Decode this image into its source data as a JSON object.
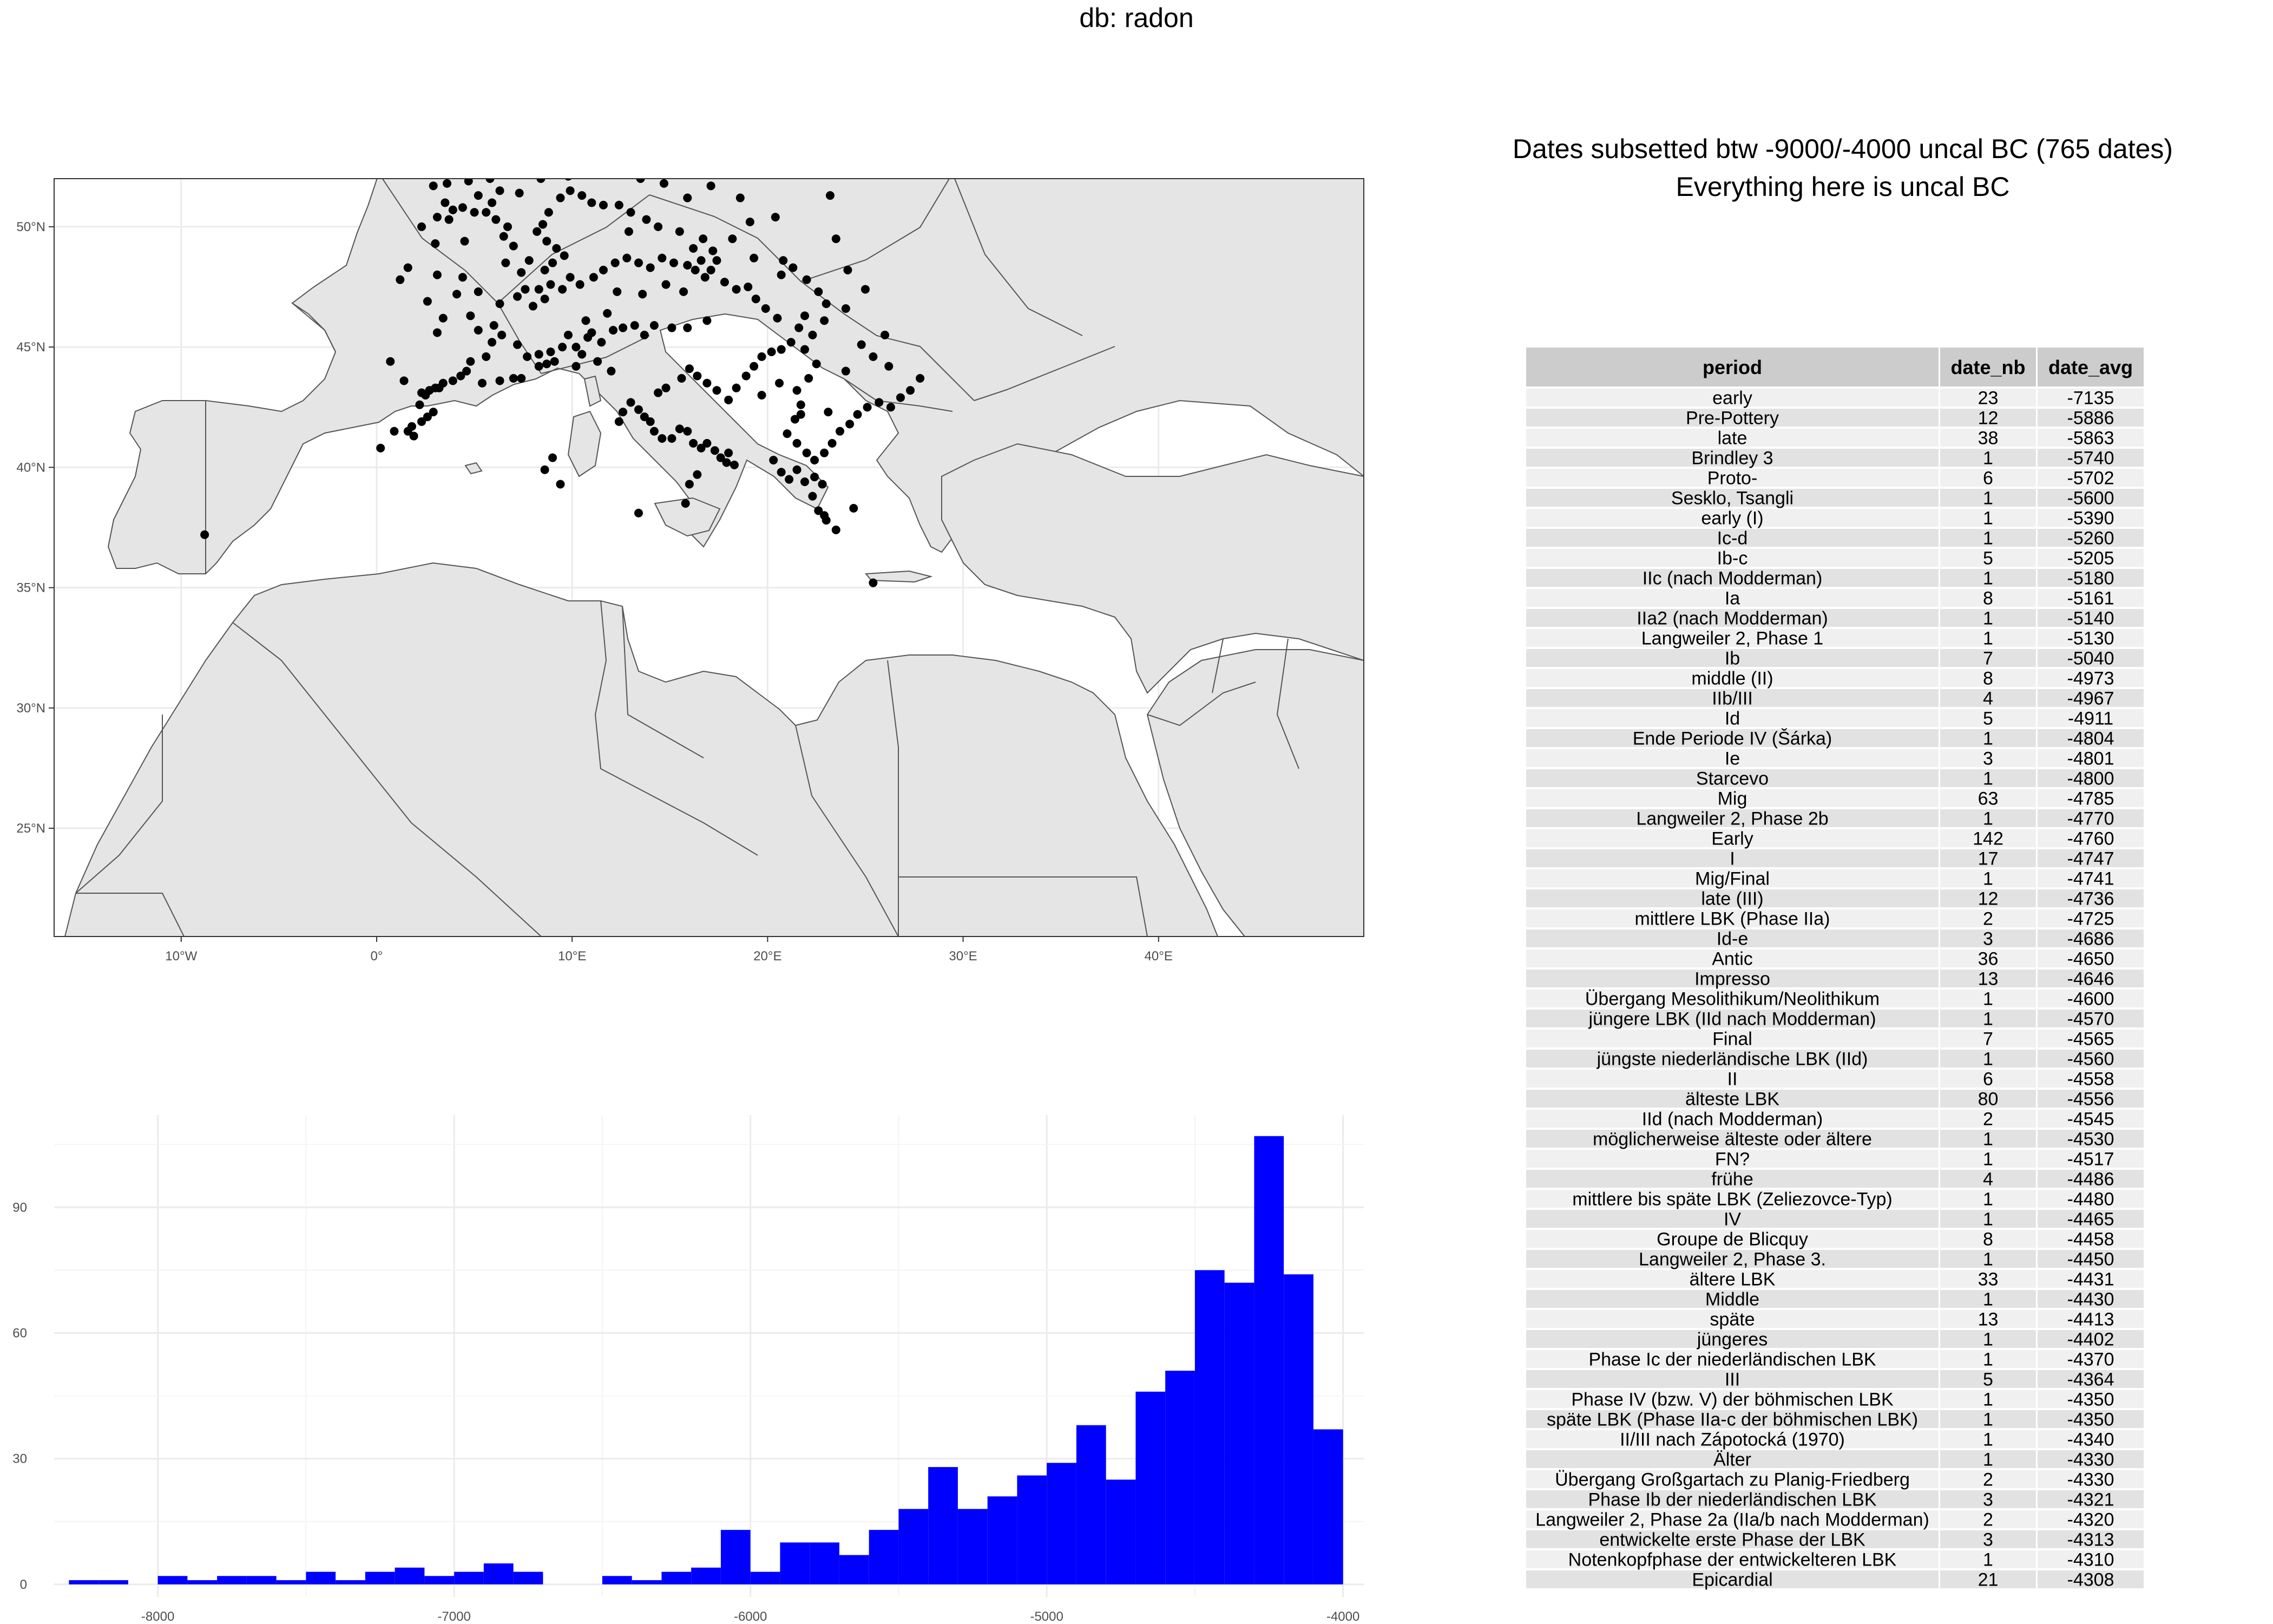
{
  "header": {
    "title": "db: radon"
  },
  "subtitle": {
    "line1": "Dates subsetted btw -9000/-4000 uncal BC (765 dates)",
    "line2": "Everything here is uncal BC"
  },
  "colors": {
    "bars": "#0000ff",
    "land": "#e5e5e5",
    "points": "#000000",
    "table_header": "#cccccc",
    "row_a": "#f0f0f0",
    "row_b": "#e2e2e2"
  },
  "map": {
    "type": "scatter",
    "xlim": [
      -16.5,
      50.5
    ],
    "ylim": [
      20.5,
      52
    ],
    "x_ticks": [
      -10,
      0,
      10,
      20,
      30,
      40
    ],
    "x_tick_labels": [
      "10°W",
      "0°",
      "10°E",
      "20°E",
      "30°E",
      "40°E"
    ],
    "y_ticks": [
      25,
      30,
      35,
      40,
      45,
      50
    ],
    "y_tick_labels": [
      "25°N",
      "30°N",
      "35°N",
      "40°N",
      "45°N",
      "50°N"
    ],
    "points": [
      [
        -8.8,
        37.2
      ],
      [
        0.2,
        40.8
      ],
      [
        0.9,
        41.5
      ],
      [
        1.9,
        41.3
      ],
      [
        1.6,
        41.5
      ],
      [
        1.8,
        41.7
      ],
      [
        2.3,
        41.9
      ],
      [
        2.6,
        42.1
      ],
      [
        2.9,
        42.3
      ],
      [
        2.2,
        42.6
      ],
      [
        2.3,
        43.1
      ],
      [
        2.7,
        43.2
      ],
      [
        3.0,
        43.3
      ],
      [
        3.2,
        43.3
      ],
      [
        3.4,
        43.5
      ],
      [
        3.9,
        43.6
      ],
      [
        4.3,
        43.8
      ],
      [
        4.6,
        44.0
      ],
      [
        5.4,
        43.5
      ],
      [
        6.3,
        43.6
      ],
      [
        7.0,
        43.7
      ],
      [
        7.4,
        43.7
      ],
      [
        4.8,
        44.4
      ],
      [
        5.6,
        44.6
      ],
      [
        5.9,
        45.2
      ],
      [
        6.4,
        45.5
      ],
      [
        7.2,
        45.1
      ],
      [
        7.7,
        44.6
      ],
      [
        8.3,
        44.2
      ],
      [
        8.7,
        44.3
      ],
      [
        9.1,
        44.4
      ],
      [
        8.3,
        44.7
      ],
      [
        8.9,
        44.8
      ],
      [
        9.5,
        45.0
      ],
      [
        10.2,
        45.0
      ],
      [
        10.8,
        45.4
      ],
      [
        11.0,
        45.6
      ],
      [
        11.5,
        45.2
      ],
      [
        12.1,
        45.7
      ],
      [
        12.6,
        45.8
      ],
      [
        13.2,
        45.9
      ],
      [
        13.7,
        45.5
      ],
      [
        14.2,
        45.9
      ],
      [
        15.1,
        45.8
      ],
      [
        15.9,
        45.8
      ],
      [
        16.9,
        46.1
      ],
      [
        8.0,
        46.7
      ],
      [
        8.6,
        47.0
      ],
      [
        7.2,
        47.1
      ],
      [
        7.6,
        47.4
      ],
      [
        8.3,
        47.4
      ],
      [
        8.9,
        47.6
      ],
      [
        9.5,
        47.4
      ],
      [
        9.9,
        47.9
      ],
      [
        10.4,
        47.6
      ],
      [
        11.1,
        47.9
      ],
      [
        11.6,
        48.2
      ],
      [
        12.2,
        48.5
      ],
      [
        12.8,
        48.7
      ],
      [
        13.4,
        48.5
      ],
      [
        14.0,
        48.3
      ],
      [
        14.6,
        48.7
      ],
      [
        15.2,
        48.5
      ],
      [
        15.9,
        48.4
      ],
      [
        16.3,
        48.2
      ],
      [
        16.6,
        48.6
      ],
      [
        17.1,
        48.2
      ],
      [
        17.4,
        48.6
      ],
      [
        17.2,
        49.0
      ],
      [
        16.7,
        49.5
      ],
      [
        16.2,
        49.1
      ],
      [
        15.5,
        49.8
      ],
      [
        14.4,
        50.0
      ],
      [
        13.8,
        50.3
      ],
      [
        13.0,
        50.6
      ],
      [
        12.4,
        50.9
      ],
      [
        11.6,
        50.9
      ],
      [
        11.0,
        51.0
      ],
      [
        10.5,
        51.3
      ],
      [
        9.9,
        51.5
      ],
      [
        9.4,
        51.2
      ],
      [
        8.8,
        50.6
      ],
      [
        8.5,
        50.1
      ],
      [
        8.2,
        49.8
      ],
      [
        8.7,
        49.4
      ],
      [
        9.2,
        49.1
      ],
      [
        9.6,
        48.8
      ],
      [
        9.0,
        48.5
      ],
      [
        8.6,
        48.2
      ],
      [
        7.8,
        48.6
      ],
      [
        7.4,
        48.1
      ],
      [
        7.0,
        49.2
      ],
      [
        6.5,
        49.6
      ],
      [
        6.1,
        50.3
      ],
      [
        5.6,
        50.6
      ],
      [
        5.0,
        50.6
      ],
      [
        4.4,
        50.8
      ],
      [
        3.9,
        50.7
      ],
      [
        3.5,
        51.0
      ],
      [
        5.2,
        51.3
      ],
      [
        5.9,
        51.0
      ],
      [
        6.3,
        51.5
      ],
      [
        7.3,
        51.4
      ],
      [
        4.7,
        51.9
      ],
      [
        3.6,
        51.8
      ],
      [
        3.1,
        50.4
      ],
      [
        2.3,
        50.0
      ],
      [
        3.0,
        49.3
      ],
      [
        1.6,
        48.3
      ],
      [
        3.1,
        48.0
      ],
      [
        4.4,
        47.9
      ],
      [
        5.2,
        47.3
      ],
      [
        6.3,
        46.8
      ],
      [
        1.2,
        47.8
      ],
      [
        2.6,
        46.9
      ],
      [
        3.4,
        46.2
      ],
      [
        4.8,
        46.3
      ],
      [
        3.1,
        45.6
      ],
      [
        5.2,
        45.7
      ],
      [
        6.0,
        45.9
      ],
      [
        12.4,
        41.9
      ],
      [
        12.6,
        42.3
      ],
      [
        13.0,
        42.7
      ],
      [
        13.4,
        42.4
      ],
      [
        13.7,
        42.1
      ],
      [
        14.0,
        41.9
      ],
      [
        14.2,
        41.5
      ],
      [
        14.6,
        41.2
      ],
      [
        15.1,
        41.2
      ],
      [
        15.5,
        41.6
      ],
      [
        15.9,
        41.5
      ],
      [
        16.2,
        41.0
      ],
      [
        16.6,
        40.8
      ],
      [
        16.9,
        41.0
      ],
      [
        17.3,
        40.7
      ],
      [
        17.6,
        40.4
      ],
      [
        17.9,
        40.2
      ],
      [
        18.3,
        40.1
      ],
      [
        18.0,
        40.6
      ],
      [
        16.4,
        39.7
      ],
      [
        16.0,
        39.3
      ],
      [
        15.8,
        38.5
      ],
      [
        14.4,
        43.1
      ],
      [
        14.8,
        43.3
      ],
      [
        15.6,
        43.7
      ],
      [
        16.0,
        44.1
      ],
      [
        16.4,
        43.8
      ],
      [
        16.9,
        43.5
      ],
      [
        17.4,
        43.2
      ],
      [
        18.0,
        42.8
      ],
      [
        18.4,
        43.3
      ],
      [
        18.9,
        43.8
      ],
      [
        19.3,
        44.2
      ],
      [
        19.7,
        44.6
      ],
      [
        20.2,
        44.8
      ],
      [
        20.7,
        44.9
      ],
      [
        21.2,
        45.2
      ],
      [
        21.6,
        45.8
      ],
      [
        21.9,
        46.3
      ],
      [
        20.5,
        46.2
      ],
      [
        19.9,
        46.6
      ],
      [
        19.4,
        47.0
      ],
      [
        19.0,
        47.5
      ],
      [
        18.4,
        47.4
      ],
      [
        17.8,
        47.7
      ],
      [
        20.7,
        48.0
      ],
      [
        21.3,
        48.3
      ],
      [
        20.8,
        48.6
      ],
      [
        22.0,
        47.8
      ],
      [
        22.6,
        47.3
      ],
      [
        23.0,
        46.8
      ],
      [
        22.9,
        46.1
      ],
      [
        22.3,
        45.5
      ],
      [
        21.9,
        44.9
      ],
      [
        22.5,
        44.3
      ],
      [
        22.1,
        43.7
      ],
      [
        21.5,
        43.2
      ],
      [
        21.7,
        42.6
      ],
      [
        21.4,
        42.0
      ],
      [
        21.0,
        41.4
      ],
      [
        21.5,
        41.0
      ],
      [
        22.0,
        40.6
      ],
      [
        22.4,
        40.3
      ],
      [
        22.9,
        40.6
      ],
      [
        23.3,
        41.0
      ],
      [
        23.7,
        41.5
      ],
      [
        24.2,
        41.8
      ],
      [
        24.6,
        42.2
      ],
      [
        25.1,
        42.5
      ],
      [
        25.7,
        42.7
      ],
      [
        26.3,
        42.5
      ],
      [
        26.8,
        42.9
      ],
      [
        27.3,
        43.2
      ],
      [
        27.8,
        43.7
      ],
      [
        26.2,
        44.2
      ],
      [
        25.4,
        44.6
      ],
      [
        24.8,
        45.1
      ],
      [
        20.3,
        40.3
      ],
      [
        20.7,
        39.8
      ],
      [
        21.1,
        39.5
      ],
      [
        21.5,
        39.9
      ],
      [
        21.9,
        39.4
      ],
      [
        22.4,
        39.6
      ],
      [
        22.8,
        39.3
      ],
      [
        22.3,
        38.8
      ],
      [
        22.6,
        38.2
      ],
      [
        23.0,
        37.8
      ],
      [
        23.5,
        37.4
      ],
      [
        24.4,
        38.3
      ],
      [
        22.9,
        38.0
      ],
      [
        25.4,
        35.2
      ],
      [
        8.6,
        39.9
      ],
      [
        9.4,
        39.3
      ],
      [
        9.0,
        40.4
      ],
      [
        13.4,
        38.1
      ],
      [
        2.5,
        43.0
      ],
      [
        1.4,
        43.6
      ],
      [
        0.7,
        44.4
      ],
      [
        3.7,
        50.3
      ],
      [
        6.7,
        50.0
      ],
      [
        4.5,
        49.4
      ],
      [
        12.9,
        49.8
      ],
      [
        18.2,
        49.5
      ],
      [
        19.1,
        50.2
      ],
      [
        20.4,
        50.4
      ],
      [
        23.2,
        51.3
      ],
      [
        24.1,
        48.2
      ],
      [
        23.5,
        49.5
      ],
      [
        25.0,
        47.4
      ],
      [
        24.0,
        46.6
      ],
      [
        26.0,
        45.5
      ],
      [
        20.6,
        43.5
      ],
      [
        19.7,
        43.0
      ],
      [
        24.0,
        44.0
      ],
      [
        10.2,
        44.2
      ],
      [
        10.5,
        44.7
      ],
      [
        11.3,
        44.4
      ],
      [
        12.0,
        44.0
      ],
      [
        9.8,
        45.5
      ],
      [
        10.7,
        46.1
      ],
      [
        11.8,
        46.4
      ],
      [
        12.3,
        47.3
      ],
      [
        13.6,
        47.2
      ],
      [
        14.8,
        47.6
      ],
      [
        15.7,
        47.3
      ],
      [
        16.8,
        47.9
      ],
      [
        11.9,
        52.2
      ],
      [
        13.5,
        52.0
      ],
      [
        14.7,
        51.8
      ],
      [
        15.9,
        51.2
      ],
      [
        17.1,
        51.7
      ],
      [
        18.6,
        51.2
      ],
      [
        4.2,
        52.2
      ],
      [
        5.8,
        52.0
      ],
      [
        7.0,
        52.3
      ],
      [
        8.4,
        52.0
      ],
      [
        9.8,
        52.1
      ],
      [
        2.9,
        51.7
      ],
      [
        6.6,
        48.5
      ],
      [
        4.1,
        47.2
      ],
      [
        19.3,
        48.7
      ],
      [
        21.7,
        42.2
      ],
      [
        23.1,
        42.3
      ]
    ]
  },
  "histogram": {
    "type": "bar",
    "bin_width": 100,
    "bin_starts": [
      -8300,
      -8200,
      -8100,
      -8000,
      -7900,
      -7800,
      -7700,
      -7600,
      -7500,
      -7400,
      -7300,
      -7200,
      -7100,
      -7000,
      -6900,
      -6800,
      -6700,
      -6600,
      -6500,
      -6400,
      -6300,
      -6200,
      -6100,
      -6000,
      -5900,
      -5800,
      -5700,
      -5600,
      -5500,
      -5400,
      -5300,
      -5200,
      -5100,
      -5000,
      -4900,
      -4800,
      -4700,
      -4600,
      -4500,
      -4400,
      -4300,
      -4200,
      -4100,
      -4000
    ],
    "values": [
      1,
      1,
      0,
      2,
      1,
      2,
      2,
      1,
      3,
      1,
      3,
      4,
      2,
      3,
      5,
      3,
      0,
      0,
      2,
      1,
      3,
      4,
      13,
      3,
      10,
      10,
      7,
      13,
      18,
      28,
      18,
      21,
      26,
      29,
      38,
      25,
      46,
      51,
      75,
      72,
      107,
      74,
      37,
      0
    ],
    "xlim": [
      -8350,
      -3930
    ],
    "ylim": [
      -3,
      112
    ],
    "x_ticks": [
      -8000,
      -7000,
      -6000,
      -5000,
      -4000
    ],
    "y_ticks": [
      0,
      30,
      60,
      90
    ]
  },
  "table": {
    "columns": [
      "period",
      "date_nb",
      "date_avg"
    ],
    "rows": [
      [
        "early",
        "23",
        "-7135"
      ],
      [
        "Pre-Pottery",
        "12",
        "-5886"
      ],
      [
        "late",
        "38",
        "-5863"
      ],
      [
        "Brindley 3",
        "1",
        "-5740"
      ],
      [
        "Proto-",
        "6",
        "-5702"
      ],
      [
        "Sesklo, Tsangli",
        "1",
        "-5600"
      ],
      [
        "early (I)",
        "1",
        "-5390"
      ],
      [
        "Ic-d",
        "1",
        "-5260"
      ],
      [
        "Ib-c",
        "5",
        "-5205"
      ],
      [
        "IIc (nach Modderman)",
        "1",
        "-5180"
      ],
      [
        "Ia",
        "8",
        "-5161"
      ],
      [
        "IIa2 (nach Modderman)",
        "1",
        "-5140"
      ],
      [
        "Langweiler 2, Phase 1",
        "1",
        "-5130"
      ],
      [
        "Ib",
        "7",
        "-5040"
      ],
      [
        "middle (II)",
        "8",
        "-4973"
      ],
      [
        "IIb/III",
        "4",
        "-4967"
      ],
      [
        "Id",
        "5",
        "-4911"
      ],
      [
        "Ende Periode IV (Šárka)",
        "1",
        "-4804"
      ],
      [
        "Ie",
        "3",
        "-4801"
      ],
      [
        "Starcevo",
        "1",
        "-4800"
      ],
      [
        "Mig",
        "63",
        "-4785"
      ],
      [
        "Langweiler 2, Phase 2b",
        "1",
        "-4770"
      ],
      [
        "Early",
        "142",
        "-4760"
      ],
      [
        "I",
        "17",
        "-4747"
      ],
      [
        "Mig/Final",
        "1",
        "-4741"
      ],
      [
        "late (III)",
        "12",
        "-4736"
      ],
      [
        "mittlere LBK (Phase IIa)",
        "2",
        "-4725"
      ],
      [
        "Id-e",
        "3",
        "-4686"
      ],
      [
        "Antic",
        "36",
        "-4650"
      ],
      [
        "Impresso",
        "13",
        "-4646"
      ],
      [
        "Übergang Mesolithikum/Neolithikum",
        "1",
        "-4600"
      ],
      [
        "jüngere LBK (IId nach Modderman)",
        "1",
        "-4570"
      ],
      [
        "Final",
        "7",
        "-4565"
      ],
      [
        "jüngste niederländische LBK (IId)",
        "1",
        "-4560"
      ],
      [
        "II",
        "6",
        "-4558"
      ],
      [
        "älteste LBK",
        "80",
        "-4556"
      ],
      [
        "IId (nach Modderman)",
        "2",
        "-4545"
      ],
      [
        "möglicherweise älteste oder ältere",
        "1",
        "-4530"
      ],
      [
        "FN?",
        "1",
        "-4517"
      ],
      [
        "frühe",
        "4",
        "-4486"
      ],
      [
        "mittlere bis späte LBK (Zeliezovce-Typ)",
        "1",
        "-4480"
      ],
      [
        "IV",
        "1",
        "-4465"
      ],
      [
        "Groupe de Blicquy",
        "8",
        "-4458"
      ],
      [
        "Langweiler 2, Phase 3.",
        "1",
        "-4450"
      ],
      [
        "ältere LBK",
        "33",
        "-4431"
      ],
      [
        "Middle",
        "1",
        "-4430"
      ],
      [
        "späte",
        "13",
        "-4413"
      ],
      [
        "jüngeres",
        "1",
        "-4402"
      ],
      [
        "Phase Ic der niederländischen LBK",
        "1",
        "-4370"
      ],
      [
        "III",
        "5",
        "-4364"
      ],
      [
        "Phase IV (bzw. V) der böhmischen LBK",
        "1",
        "-4350"
      ],
      [
        "späte LBK (Phase IIa-c der böhmischen LBK)",
        "1",
        "-4350"
      ],
      [
        "II/III nach Zápotocká (1970)",
        "1",
        "-4340"
      ],
      [
        "Älter",
        "1",
        "-4330"
      ],
      [
        "Übergang Großgartach zu Planig-Friedberg",
        "2",
        "-4330"
      ],
      [
        "Phase Ib der niederländischen LBK",
        "3",
        "-4321"
      ],
      [
        "Langweiler 2, Phase 2a (IIa/b nach Modderman)",
        "2",
        "-4320"
      ],
      [
        "entwickelte erste Phase der LBK",
        "3",
        "-4313"
      ],
      [
        "Notenkopfphase der entwickelteren LBK",
        "1",
        "-4310"
      ],
      [
        "Epicardial",
        "21",
        "-4308"
      ]
    ]
  }
}
